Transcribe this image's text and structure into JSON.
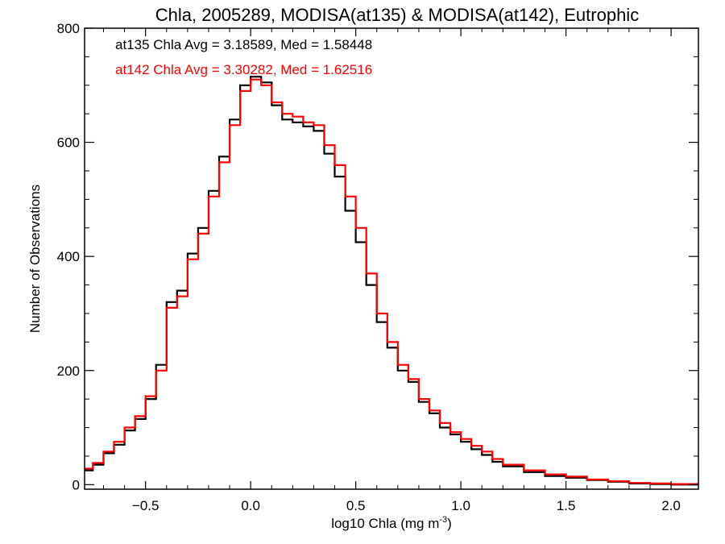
{
  "chart_data": {
    "type": "line",
    "title": "Chla, 2005289, MODISA(at135) & MODISA(at142), Eutrophic",
    "xlabel": "log10 Chla (mg m",
    "xlabel_sup": "-3",
    "xlabel_close": ")",
    "ylabel": "Number of Observations",
    "xlim": [
      -0.79,
      2.13
    ],
    "ylim": [
      -8,
      800
    ],
    "xticks": [
      -0.5,
      0.0,
      0.5,
      1.0,
      1.5,
      2.0
    ],
    "xtick_labels": [
      "−0.5",
      "0.0",
      "0.5",
      "1.0",
      "1.5",
      "2.0"
    ],
    "yticks": [
      0,
      200,
      400,
      600,
      800
    ],
    "ytick_labels": [
      "0",
      "200",
      "400",
      "600",
      "800"
    ],
    "grid": false,
    "annotations": [
      {
        "text": "at135 Chla Avg = 3.18589, Med = 1.58448",
        "color": "#000000"
      },
      {
        "text": "at142 Chla Avg = 3.30282, Med = 1.62516",
        "color": "#ff0000"
      }
    ],
    "series": [
      {
        "color": "#000000",
        "x": [
          -0.79,
          -0.75,
          -0.7,
          -0.65,
          -0.6,
          -0.55,
          -0.5,
          -0.45,
          -0.4,
          -0.35,
          -0.3,
          -0.25,
          -0.2,
          -0.15,
          -0.1,
          -0.05,
          0.0,
          0.05,
          0.1,
          0.15,
          0.2,
          0.25,
          0.3,
          0.35,
          0.4,
          0.45,
          0.5,
          0.55,
          0.6,
          0.65,
          0.7,
          0.75,
          0.8,
          0.85,
          0.9,
          0.95,
          1.0,
          1.05,
          1.1,
          1.15,
          1.2,
          1.3,
          1.4,
          1.5,
          1.6,
          1.7,
          1.8,
          1.9,
          2.0
        ],
        "y": [
          25,
          35,
          55,
          70,
          95,
          115,
          150,
          210,
          320,
          340,
          405,
          450,
          515,
          575,
          640,
          700,
          715,
          705,
          665,
          640,
          635,
          628,
          620,
          580,
          540,
          480,
          425,
          350,
          285,
          240,
          200,
          180,
          145,
          125,
          100,
          88,
          75,
          62,
          52,
          40,
          32,
          22,
          15,
          12,
          8,
          5,
          2,
          1,
          0
        ]
      },
      {
        "color": "#ff0000",
        "x": [
          -0.79,
          -0.75,
          -0.7,
          -0.65,
          -0.6,
          -0.55,
          -0.5,
          -0.45,
          -0.4,
          -0.35,
          -0.3,
          -0.25,
          -0.2,
          -0.15,
          -0.1,
          -0.05,
          0.0,
          0.05,
          0.1,
          0.15,
          0.2,
          0.25,
          0.3,
          0.35,
          0.4,
          0.45,
          0.5,
          0.55,
          0.6,
          0.65,
          0.7,
          0.75,
          0.8,
          0.85,
          0.9,
          0.95,
          1.0,
          1.05,
          1.1,
          1.15,
          1.2,
          1.3,
          1.4,
          1.5,
          1.6,
          1.7,
          1.8,
          1.9,
          2.0,
          2.13
        ],
        "y": [
          28,
          38,
          58,
          75,
          100,
          120,
          155,
          200,
          310,
          330,
          395,
          440,
          505,
          565,
          630,
          690,
          710,
          700,
          670,
          650,
          645,
          635,
          630,
          595,
          560,
          505,
          450,
          370,
          300,
          250,
          210,
          185,
          150,
          130,
          108,
          92,
          80,
          68,
          58,
          45,
          35,
          25,
          18,
          14,
          9,
          6,
          3,
          2,
          1,
          1
        ]
      }
    ]
  }
}
